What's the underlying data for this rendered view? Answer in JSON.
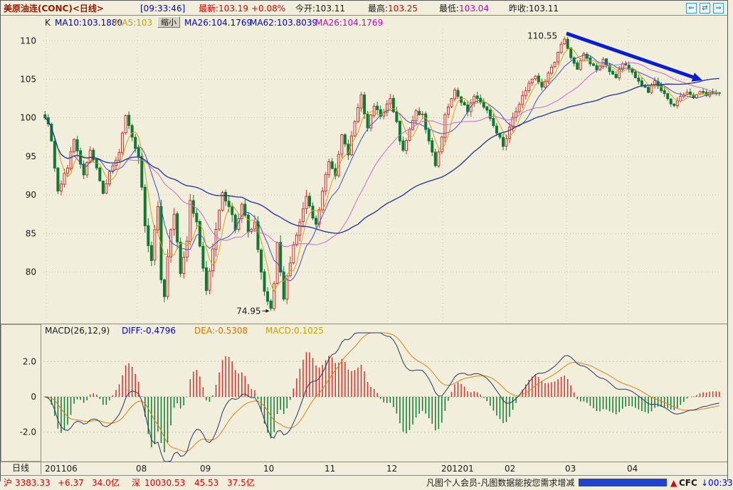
{
  "title_bar": {
    "symbol": "美原油连(CONC)<日线>",
    "time": "[09:33:46]",
    "last_label": "最新:",
    "last_value": "103.19",
    "change_pct": "+0.08%",
    "open_label": "今开:",
    "open_value": "103.11",
    "high_label": "最高:",
    "high_value": "103.25",
    "low_label": "最低:",
    "low_value": "103.04",
    "prev_label": "昨收:",
    "prev_value": "103.11",
    "nav_buttons": [
      "⇐",
      "⇄",
      "⇒"
    ]
  },
  "legend_bar": {
    "k_label": "K",
    "ma10": "MA10:103.1880",
    "ma5": "MA5:103",
    "zoom_out_button": "缩小",
    "ma26_blue": "MA26:104.1769",
    "ma62": "MA62:103.8039",
    "ma26_magenta": "MA26:104.1769"
  },
  "macd_bar": {
    "name": "MACD(26,12,9)",
    "diff": "DIFF:-0.4796",
    "dea": "DEA:-0.5308",
    "macd": "MACD:0.1025"
  },
  "bottom_bar": {
    "period_label": "日线"
  },
  "status_bar": {
    "sh_label": "沪",
    "sh_index": "3383.33",
    "sh_change": "+6.37",
    "sh_volume": "34.0亿",
    "sz_label": "深",
    "sz_index": "10030.53",
    "sz_change": "45.53",
    "sz_volume": "37.5亿",
    "notice": "凡图个人会员-凡图数据能按您需求增减",
    "brand_arrow": "▲",
    "brand": "CFC",
    "clock": "↓00:33"
  },
  "colors": {
    "background": "#F2EEDC",
    "up": "#D8302F",
    "down": "#0E7A30",
    "ma5": "#D8A018",
    "ma10": "#3C50C8",
    "ma26": "#C76BC8",
    "ma62": "#1E2FA0",
    "diff_line": "#26365E",
    "dea_line": "#D8821A",
    "grid": "#C9C3A8",
    "text": "#1A1A1A",
    "blue_text": "#0000CC",
    "red_text": "#DD0000",
    "magenta_text": "#C800C8",
    "title_red": "#981800",
    "trend_arrow": "#0A1ECC"
  },
  "chart_data": {
    "type": "candlestick",
    "title": "美原油连(CONC) 日线",
    "period": "日线",
    "price_ticks": [
      110,
      105,
      100,
      95,
      90,
      85,
      80
    ],
    "ylim": [
      73.5,
      111.5
    ],
    "x_labels": [
      {
        "label": "201106",
        "x": 62
      },
      {
        "label": "08",
        "x": 190
      },
      {
        "label": "09",
        "x": 280
      },
      {
        "label": "10",
        "x": 369
      },
      {
        "label": "11",
        "x": 455
      },
      {
        "label": "12",
        "x": 542
      },
      {
        "label": "201201",
        "x": 619
      },
      {
        "label": "02",
        "x": 708
      },
      {
        "label": "03",
        "x": 793
      },
      {
        "label": "04",
        "x": 880
      }
    ],
    "n": 210,
    "close_anchors": [
      [
        0,
        100.0
      ],
      [
        1,
        99.2
      ],
      [
        2,
        97.0
      ],
      [
        4,
        90.5
      ],
      [
        6,
        92.8
      ],
      [
        7,
        93.5
      ],
      [
        9,
        97.2
      ],
      [
        11,
        94.0
      ],
      [
        12,
        92.6
      ],
      [
        14,
        95.8
      ],
      [
        16,
        93.5
      ],
      [
        18,
        90.2
      ],
      [
        20,
        93.0
      ],
      [
        22,
        94.5
      ],
      [
        23,
        95.5
      ],
      [
        25,
        100.3
      ],
      [
        26,
        99.0
      ],
      [
        27,
        97.5
      ],
      [
        29,
        95.0
      ],
      [
        30,
        91.0
      ],
      [
        31,
        86.0
      ],
      [
        33,
        81.5
      ],
      [
        34,
        85.5
      ],
      [
        35,
        88.5
      ],
      [
        36,
        79.0
      ],
      [
        37,
        76.8
      ],
      [
        38,
        82.0
      ],
      [
        39,
        85.5
      ],
      [
        40,
        87.5
      ],
      [
        42,
        79.8
      ],
      [
        44,
        84.0
      ],
      [
        45,
        89.3
      ],
      [
        47,
        86.5
      ],
      [
        49,
        80.5
      ],
      [
        50,
        77.6
      ],
      [
        52,
        83.0
      ],
      [
        54,
        88.0
      ],
      [
        55,
        90.3
      ],
      [
        57,
        88.5
      ],
      [
        59,
        85.5
      ],
      [
        61,
        88.8
      ],
      [
        63,
        85.2
      ],
      [
        65,
        86.5
      ],
      [
        67,
        80.0
      ],
      [
        68,
        77.5
      ],
      [
        69,
        76.2
      ],
      [
        70,
        75.3
      ],
      [
        71,
        78.5
      ],
      [
        72,
        83.8
      ],
      [
        73,
        80.0
      ],
      [
        74,
        76.5
      ],
      [
        75,
        79.5
      ],
      [
        77,
        83.5
      ],
      [
        79,
        86.5
      ],
      [
        81,
        89.8
      ],
      [
        83,
        87.0
      ],
      [
        84,
        86.2
      ],
      [
        86,
        90.5
      ],
      [
        88,
        94.3
      ],
      [
        90,
        92.5
      ],
      [
        92,
        97.8
      ],
      [
        94,
        95.2
      ],
      [
        96,
        99.5
      ],
      [
        98,
        103.0
      ],
      [
        99,
        100.5
      ],
      [
        100,
        98.7
      ],
      [
        102,
        101.5
      ],
      [
        104,
        100.2
      ],
      [
        106,
        101.8
      ],
      [
        107,
        102.5
      ],
      [
        109,
        99.5
      ],
      [
        110,
        97.0
      ],
      [
        111,
        95.8
      ],
      [
        113,
        98.5
      ],
      [
        115,
        100.9
      ],
      [
        117,
        100.5
      ],
      [
        119,
        97.0
      ],
      [
        121,
        93.8
      ],
      [
        123,
        97.5
      ],
      [
        124,
        100.4
      ],
      [
        126,
        102.5
      ],
      [
        127,
        103.6
      ],
      [
        129,
        102.0
      ],
      [
        131,
        100.8
      ],
      [
        133,
        102.8
      ],
      [
        135,
        102.0
      ],
      [
        137,
        101.0
      ],
      [
        139,
        99.0
      ],
      [
        141,
        97.5
      ],
      [
        142,
        96.3
      ],
      [
        144,
        98.8
      ],
      [
        146,
        100.8
      ],
      [
        148,
        102.9
      ],
      [
        150,
        104.5
      ],
      [
        152,
        105.4
      ],
      [
        154,
        104.0
      ],
      [
        156,
        105.8
      ],
      [
        158,
        107.2
      ],
      [
        159,
        108.5
      ],
      [
        161,
        110.2
      ],
      [
        162,
        109.0
      ],
      [
        163,
        107.8
      ],
      [
        165,
        106.3
      ],
      [
        167,
        108.3
      ],
      [
        169,
        107.0
      ],
      [
        171,
        106.2
      ],
      [
        173,
        107.6
      ],
      [
        175,
        106.0
      ],
      [
        177,
        105.2
      ],
      [
        179,
        107.0
      ],
      [
        181,
        106.3
      ],
      [
        183,
        105.2
      ],
      [
        185,
        104.2
      ],
      [
        187,
        103.3
      ],
      [
        189,
        104.8
      ],
      [
        191,
        103.5
      ],
      [
        193,
        102.5
      ],
      [
        195,
        101.6
      ],
      [
        197,
        102.8
      ],
      [
        199,
        103.3
      ],
      [
        201,
        102.6
      ],
      [
        203,
        103.4
      ],
      [
        205,
        102.9
      ],
      [
        207,
        103.3
      ],
      [
        209,
        103.19
      ]
    ],
    "high_point": {
      "index": 161,
      "price": 110.55,
      "label": "110.55"
    },
    "low_point": {
      "index": 70,
      "price": 74.95,
      "label": "74.95"
    },
    "ma_periods": {
      "ma5": 5,
      "ma10": 10,
      "ma26": 26,
      "ma62": 62
    },
    "macd": {
      "params": [
        26,
        12,
        9
      ],
      "ticks": [
        {
          "label": "2.0",
          "v": 2
        },
        {
          "label": "0",
          "v": 0
        },
        {
          "label": "-2.0",
          "v": -2
        }
      ],
      "ylim": [
        -3.5,
        3.5
      ]
    },
    "trend_arrow": {
      "x1": 795,
      "y1": 46,
      "x2": 986,
      "y2": 112
    }
  }
}
